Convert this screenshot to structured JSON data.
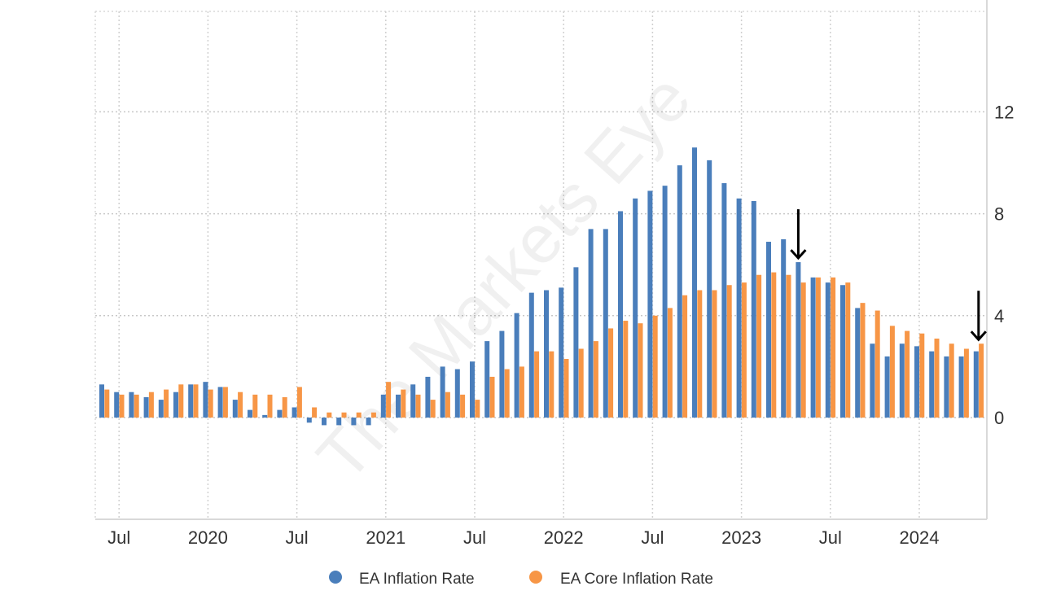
{
  "chart_data": {
    "type": "bar",
    "title": "",
    "xlabel": "",
    "ylabel": "",
    "ylim": [
      -4,
      16
    ],
    "yticks": [
      0,
      4,
      8,
      12
    ],
    "y_axis_side": "right",
    "grid": true,
    "legend_placement": "bottom-center",
    "x_start": "2019-06",
    "x_tick_labels": [
      {
        "label": "Jul",
        "month_index": 1
      },
      {
        "label": "2020",
        "month_index": 7
      },
      {
        "label": "Jul",
        "month_index": 13
      },
      {
        "label": "2021",
        "month_index": 19
      },
      {
        "label": "Jul",
        "month_index": 25
      },
      {
        "label": "2022",
        "month_index": 31
      },
      {
        "label": "Jul",
        "month_index": 37
      },
      {
        "label": "2023",
        "month_index": 43
      },
      {
        "label": "Jul",
        "month_index": 49
      },
      {
        "label": "2024",
        "month_index": 55
      }
    ],
    "series": [
      {
        "name": "EA Inflation Rate",
        "color": "#4a7ebb",
        "values": [
          1.3,
          1.0,
          1.0,
          0.8,
          0.7,
          1.0,
          1.3,
          1.4,
          1.2,
          0.7,
          0.3,
          0.1,
          0.3,
          0.4,
          -0.2,
          -0.3,
          -0.3,
          -0.3,
          -0.3,
          0.9,
          0.9,
          1.3,
          1.6,
          2.0,
          1.9,
          2.2,
          3.0,
          3.4,
          4.1,
          4.9,
          5.0,
          5.1,
          5.9,
          7.4,
          7.4,
          8.1,
          8.6,
          8.9,
          9.1,
          9.9,
          10.6,
          10.1,
          9.2,
          8.6,
          8.5,
          6.9,
          7.0,
          6.1,
          5.5,
          5.3,
          5.2,
          4.3,
          2.9,
          2.4,
          2.9,
          2.8,
          2.6,
          2.4,
          2.4,
          2.6
        ]
      },
      {
        "name": "EA Core Inflation Rate",
        "color": "#f79646",
        "values": [
          1.1,
          0.9,
          0.9,
          1.0,
          1.1,
          1.3,
          1.3,
          1.1,
          1.2,
          1.0,
          0.9,
          0.9,
          0.8,
          1.2,
          0.4,
          0.2,
          0.2,
          0.2,
          0.2,
          1.4,
          1.1,
          0.9,
          0.7,
          1.0,
          0.9,
          0.7,
          1.6,
          1.9,
          2.0,
          2.6,
          2.6,
          2.3,
          2.7,
          3.0,
          3.5,
          3.8,
          3.7,
          4.0,
          4.3,
          4.8,
          5.0,
          5.0,
          5.2,
          5.3,
          5.6,
          5.7,
          5.6,
          5.3,
          5.5,
          5.5,
          5.3,
          4.5,
          4.2,
          3.6,
          3.4,
          3.3,
          3.1,
          2.9,
          2.7,
          2.9
        ]
      }
    ],
    "annotations": [
      {
        "type": "arrow-down",
        "month_index": 47,
        "value": 6.1
      },
      {
        "type": "arrow-down",
        "month_index": 59,
        "value": 2.9
      }
    ],
    "watermark": "The Markets Eye"
  }
}
